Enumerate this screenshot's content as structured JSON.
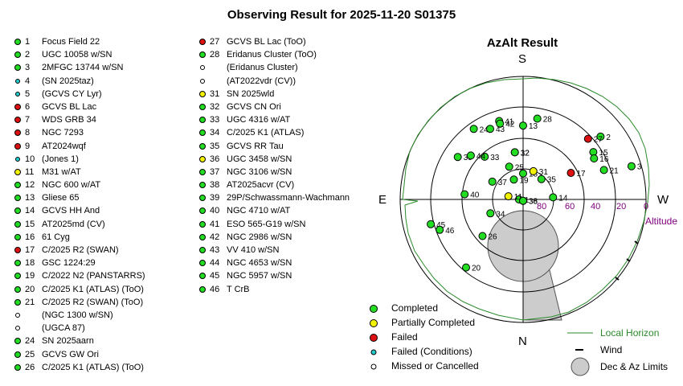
{
  "title": "Observing Result for 2025-11-20 S01375",
  "colors": {
    "completed": "#22dd22",
    "partial": "#f2f200",
    "failed": "#dd1111",
    "failed_conditions": "#22cccc",
    "missed": "#ffffff",
    "horizon": "#2a8a2a",
    "limits": "#cccccc",
    "altitude_labels": "#800080"
  },
  "targets": [
    {
      "num": "1",
      "name": "Focus Field 22",
      "status": "completed"
    },
    {
      "num": "2",
      "name": "UGC 10058 w/SN",
      "status": "completed"
    },
    {
      "num": "3",
      "name": "2MFGC 13744 w/SN",
      "status": "completed"
    },
    {
      "num": "4",
      "name": "(SN 2025taz)",
      "status": "failed_conditions"
    },
    {
      "num": "5",
      "name": "(GCVS CY Lyr)",
      "status": "failed_conditions"
    },
    {
      "num": "6",
      "name": "GCVS BL Lac",
      "status": "failed"
    },
    {
      "num": "7",
      "name": "WDS GRB 34",
      "status": "failed"
    },
    {
      "num": "8",
      "name": "NGC 7293",
      "status": "failed"
    },
    {
      "num": "9",
      "name": "AT2024wqf",
      "status": "failed"
    },
    {
      "num": "10",
      "name": "(Jones 1)",
      "status": "failed_conditions"
    },
    {
      "num": "11",
      "name": "M31 w/AT",
      "status": "partial"
    },
    {
      "num": "12",
      "name": "NGC 600 w/AT",
      "status": "completed"
    },
    {
      "num": "13",
      "name": "Gliese 65",
      "status": "completed"
    },
    {
      "num": "14",
      "name": "GCVS HH And",
      "status": "completed"
    },
    {
      "num": "15",
      "name": "AT2025md (CV)",
      "status": "completed"
    },
    {
      "num": "16",
      "name": "61 Cyg",
      "status": "completed"
    },
    {
      "num": "17",
      "name": "C/2025 R2 (SWAN)",
      "status": "failed"
    },
    {
      "num": "18",
      "name": "GSC 1224:29",
      "status": "completed"
    },
    {
      "num": "19",
      "name": "C/2022 N2 (PANSTARRS)",
      "status": "completed"
    },
    {
      "num": "20",
      "name": "C/2025 K1 (ATLAS) (ToO)",
      "status": "completed"
    },
    {
      "num": "21",
      "name": "C/2025 R2 (SWAN) (ToO)",
      "status": "completed"
    },
    {
      "num": "",
      "name": "(NGC 1300 w/SN)",
      "status": "missed"
    },
    {
      "num": "",
      "name": "(UGCA 87)",
      "status": "missed"
    },
    {
      "num": "24",
      "name": "SN 2025aarn",
      "status": "completed"
    },
    {
      "num": "25",
      "name": "GCVS GW Ori",
      "status": "completed"
    },
    {
      "num": "26",
      "name": "C/2025 K1 (ATLAS) (ToO)",
      "status": "completed"
    },
    {
      "num": "27",
      "name": "GCVS BL Lac (ToO)",
      "status": "failed"
    },
    {
      "num": "28",
      "name": "Eridanus Cluster (ToO)",
      "status": "completed"
    },
    {
      "num": "",
      "name": "(Eridanus Cluster)",
      "status": "missed"
    },
    {
      "num": "",
      "name": "(AT2022vdr (CV))",
      "status": "missed"
    },
    {
      "num": "31",
      "name": "SN 2025wld",
      "status": "partial"
    },
    {
      "num": "32",
      "name": "GCVS CN Ori",
      "status": "completed"
    },
    {
      "num": "33",
      "name": "UGC 4316 w/AT",
      "status": "completed"
    },
    {
      "num": "34",
      "name": "C/2025 K1 (ATLAS)",
      "status": "completed"
    },
    {
      "num": "35",
      "name": "GCVS RR Tau",
      "status": "completed"
    },
    {
      "num": "36",
      "name": "UGC 3458 w/SN",
      "status": "partial"
    },
    {
      "num": "37",
      "name": "NGC 3106 w/SN",
      "status": "completed"
    },
    {
      "num": "38",
      "name": "AT2025acvr (CV)",
      "status": "completed"
    },
    {
      "num": "39",
      "name": "29P/Schwassmann-Wachmann",
      "status": "completed"
    },
    {
      "num": "40",
      "name": "NGC 4710 w/AT",
      "status": "completed"
    },
    {
      "num": "41",
      "name": "ESO 565-G19 w/SN",
      "status": "completed"
    },
    {
      "num": "42",
      "name": "NGC 2986 w/SN",
      "status": "completed"
    },
    {
      "num": "43",
      "name": "VV 410 w/SN",
      "status": "completed"
    },
    {
      "num": "44",
      "name": "NGC 4653 w/SN",
      "status": "completed"
    },
    {
      "num": "45",
      "name": "NGC 5957 w/SN",
      "status": "completed"
    },
    {
      "num": "46",
      "name": "T CrB",
      "status": "completed"
    }
  ],
  "chart": {
    "title": "AzAlt Result",
    "compass": {
      "north": "N",
      "south": "S",
      "east": "E",
      "west": "W"
    },
    "altitude_ticks": [
      "80",
      "60",
      "40",
      "20",
      "0"
    ],
    "altitude_axis_label": "Altitude",
    "legend": {
      "completed": "Completed",
      "partial": "Partially Completed",
      "failed": "Failed",
      "failed_conditions": "Failed (Conditions)",
      "missed": "Missed or Cancelled",
      "horizon": "Local Horizon",
      "wind": "Wind",
      "limits": "Dec & Az Limits"
    }
  },
  "chart_data": {
    "type": "scatter",
    "projection": "polar azimuth/altitude (S at top, N at bottom, E left, W right)",
    "altitude_rings_deg": [
      80,
      60,
      40,
      20,
      0
    ],
    "points": [
      {
        "label": "1",
        "az": 90,
        "alt": 87,
        "status": "completed"
      },
      {
        "label": "2",
        "az": 231,
        "alt": 17,
        "status": "completed"
      },
      {
        "label": "3",
        "az": 253,
        "alt": 7,
        "status": "completed"
      },
      {
        "label": "11",
        "az": 102,
        "alt": 79,
        "status": "partial"
      },
      {
        "label": "12",
        "az": 170,
        "alt": 55,
        "status": "completed"
      },
      {
        "label": "13",
        "az": 180,
        "alt": 36,
        "status": "completed"
      },
      {
        "label": "14",
        "az": 266,
        "alt": 68,
        "status": "completed"
      },
      {
        "label": "15",
        "az": 236,
        "alt": 28,
        "status": "completed"
      },
      {
        "label": "16",
        "az": 240,
        "alt": 30,
        "status": "completed"
      },
      {
        "label": "17",
        "az": 241,
        "alt": 50,
        "status": "failed"
      },
      {
        "label": "18",
        "az": 180,
        "alt": 71,
        "status": "completed"
      },
      {
        "label": "19",
        "az": 155,
        "alt": 74,
        "status": "completed"
      },
      {
        "label": "20",
        "az": 40,
        "alt": 25,
        "status": "completed"
      },
      {
        "label": "21",
        "az": 250,
        "alt": 27,
        "status": "completed"
      },
      {
        "label": "24",
        "az": 145,
        "alt": 27,
        "status": "completed"
      },
      {
        "label": "25",
        "az": 157,
        "alt": 64,
        "status": "completed"
      },
      {
        "label": "26",
        "az": 48,
        "alt": 50,
        "status": "completed"
      },
      {
        "label": "27",
        "az": 227,
        "alt": 25,
        "status": "failed"
      },
      {
        "label": "28",
        "az": 190,
        "alt": 30,
        "status": "completed"
      },
      {
        "label": "31",
        "az": 200,
        "alt": 68,
        "status": "partial"
      },
      {
        "label": "32",
        "az": 170,
        "alt": 55,
        "status": "completed"
      },
      {
        "label": "33",
        "az": 138,
        "alt": 48,
        "status": "completed"
      },
      {
        "label": "34",
        "az": 67,
        "alt": 64,
        "status": "completed"
      },
      {
        "label": "35",
        "az": 222,
        "alt": 70,
        "status": "completed"
      },
      {
        "label": "36",
        "az": 0,
        "alt": 89,
        "status": "partial"
      },
      {
        "label": "37",
        "az": 120,
        "alt": 64,
        "status": "completed"
      },
      {
        "label": "38",
        "az": 0,
        "alt": 89,
        "status": "completed"
      },
      {
        "label": "39",
        "az": 123,
        "alt": 33,
        "status": "completed"
      },
      {
        "label": "40",
        "az": 95,
        "alt": 47,
        "status": "completed"
      },
      {
        "label": "41",
        "az": 163,
        "alt": 30,
        "status": "completed"
      },
      {
        "label": "42",
        "az": 163,
        "alt": 32,
        "status": "completed"
      },
      {
        "label": "43",
        "az": 155,
        "alt": 33,
        "status": "completed"
      },
      {
        "label": "44",
        "az": 130,
        "alt": 40,
        "status": "completed"
      },
      {
        "label": "45",
        "az": 75,
        "alt": 20,
        "status": "completed"
      },
      {
        "label": "46",
        "az": 70,
        "alt": 25,
        "status": "completed"
      }
    ]
  }
}
